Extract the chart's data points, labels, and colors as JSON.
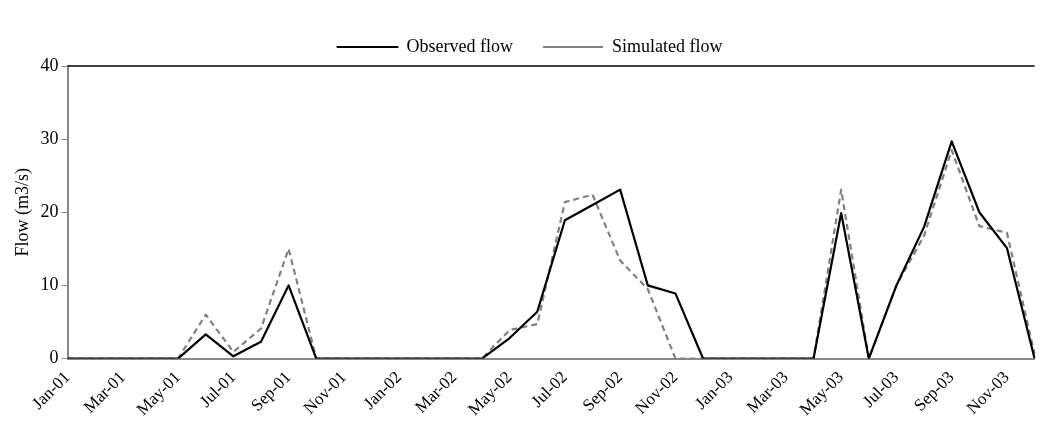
{
  "chart_data": {
    "type": "line",
    "ylabel": "Flow (m3/s)",
    "categories": [
      "Jan-01",
      null,
      "Mar-01",
      null,
      "May-01",
      null,
      "Jul-01",
      null,
      "Sep-01",
      null,
      "Nov-01",
      null,
      "Jan-02",
      null,
      "Mar-02",
      null,
      "May-02",
      null,
      "Jul-02",
      null,
      "Sep-02",
      null,
      "Nov-02",
      null,
      "Jan-03",
      null,
      "Mar-03",
      null,
      "May-03",
      null,
      "Jul-03",
      null,
      "Sep-03",
      null,
      "Nov-03",
      null
    ],
    "series": [
      {
        "name": "Observed flow",
        "color": "#000000",
        "line_style": "solid",
        "values": [
          0,
          0,
          0,
          0,
          0,
          3.3,
          0.3,
          2.3,
          10,
          0,
          0,
          0,
          0,
          0,
          0,
          0,
          2.8,
          6.4,
          18.9,
          21,
          23.1,
          10,
          8.9,
          0,
          0,
          0,
          0,
          0,
          19.9,
          0,
          10,
          18,
          29.7,
          20,
          15.1,
          0
        ]
      },
      {
        "name": "Simulated flow",
        "color": "#808080",
        "line_style": "dashed",
        "values": [
          0,
          0,
          0,
          0,
          0,
          6,
          0.9,
          4.1,
          15,
          0,
          0,
          0,
          0,
          0,
          0,
          0,
          3.9,
          4.7,
          21.4,
          22.4,
          13.4,
          9.5,
          0,
          0,
          0,
          0,
          0,
          0,
          23.1,
          0,
          10,
          16.8,
          28.5,
          18.1,
          17.2,
          0.6
        ]
      }
    ],
    "ylim": [
      0,
      40
    ],
    "yticks": [
      0,
      10,
      20,
      30,
      40
    ],
    "grid": false,
    "legend": "top",
    "marker": "none"
  }
}
